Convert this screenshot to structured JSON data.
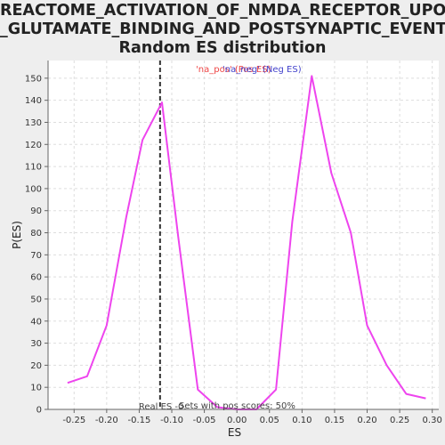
{
  "chart_data": {
    "type": "line",
    "title_lines": [
      "REACTOME_ACTIVATION_OF_NMDA_RECEPTOR_UPON",
      "_GLUTAMATE_BINDING_AND_POSTSYNAPTIC_EVENTS:",
      "Random ES distribution"
    ],
    "xlabel": "ES",
    "ylabel": "P(ES)",
    "xlim": [
      -0.29,
      0.31
    ],
    "ylim": [
      0,
      158
    ],
    "xticks": [
      -0.25,
      -0.2,
      -0.15,
      -0.1,
      -0.05,
      0.0,
      0.05,
      0.1,
      0.15,
      0.2,
      0.25,
      0.3
    ],
    "xtick_labels": [
      "-0.25",
      "-0.20",
      "-0.15",
      "-0.10",
      "-0.05",
      "0.00",
      "0.05",
      "0.10",
      "0.15",
      "0.20",
      "0.25",
      "0.30"
    ],
    "yticks": [
      0,
      10,
      20,
      30,
      40,
      50,
      60,
      70,
      80,
      90,
      100,
      110,
      120,
      130,
      140,
      150
    ],
    "ytick_labels": [
      "0",
      "10",
      "20",
      "30",
      "40",
      "50",
      "60",
      "70",
      "80",
      "90",
      "100",
      "110",
      "120",
      "130",
      "140",
      "150"
    ],
    "grid": true,
    "series": [
      {
        "color": "#ee44ee",
        "x": [
          -0.26,
          -0.23,
          -0.2,
          -0.17,
          -0.145,
          -0.115,
          -0.09,
          -0.06,
          -0.03,
          0.0,
          0.03,
          0.06,
          0.085,
          0.115,
          0.145,
          0.175,
          0.2,
          0.23,
          0.26,
          0.29
        ],
        "y": [
          12,
          15,
          38,
          87,
          122,
          139,
          78,
          9,
          1,
          0,
          0,
          9,
          85,
          151,
          107,
          80,
          38,
          20,
          7,
          5
        ]
      }
    ],
    "real_es": -0.118,
    "real_es_label": "Real ES -0.",
    "pos_scores_label": "Sets with pos scores: 50%",
    "legend": {
      "placement": "top",
      "pos_label": "'na_pos' (Pos ES)",
      "neg_label": "'na_neg' (Neg ES)",
      "pos_color": "#ee4444",
      "neg_color": "#4444cc"
    },
    "colors": {
      "plot_background": "#ffffff",
      "grid": "#dddddd",
      "real_es_line": "#333333"
    }
  }
}
